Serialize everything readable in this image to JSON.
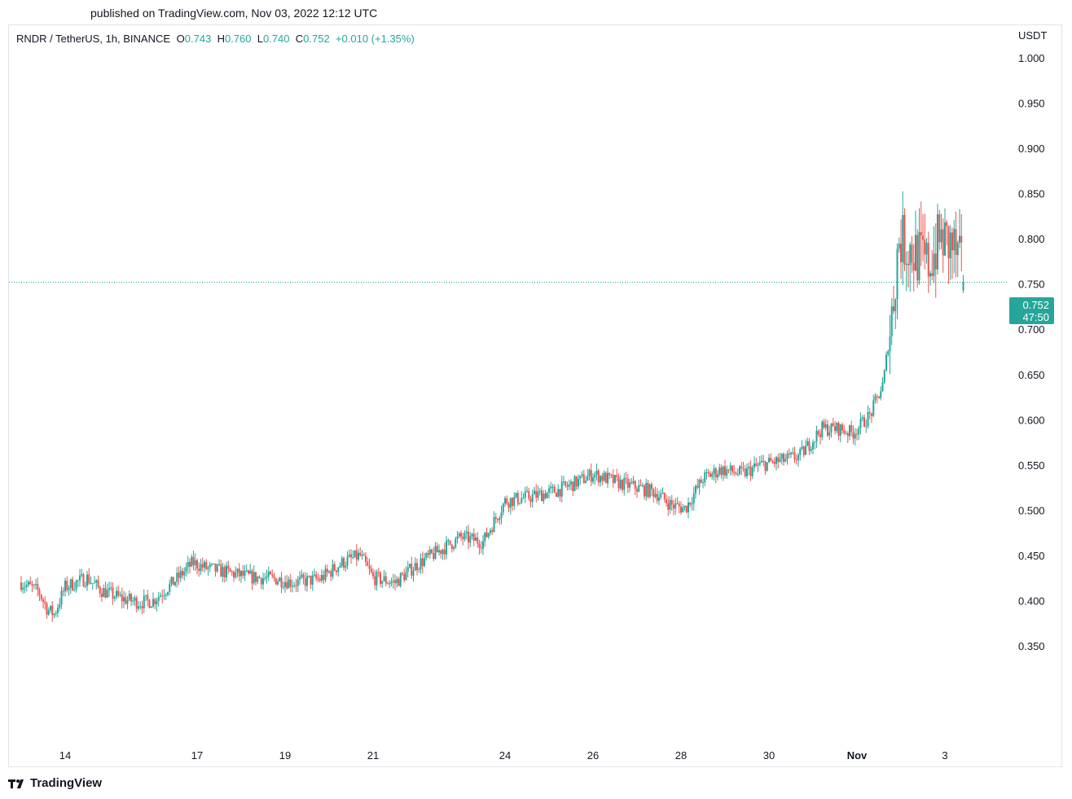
{
  "header": {
    "published": "published on TradingView.com, Nov 03, 2022 12:12 UTC"
  },
  "legend": {
    "symbol": "RNDR / TetherUS, 1h, BINANCE",
    "o_label": "O",
    "o_value": "0.743",
    "h_label": "H",
    "h_value": "0.760",
    "l_label": "L",
    "l_value": "0.740",
    "c_label": "C",
    "c_value": "0.752",
    "change": "+0.010 (+1.35%)"
  },
  "price_badge": {
    "price": "0.752",
    "countdown": "47:50"
  },
  "footer": {
    "brand": "TradingView"
  },
  "colors": {
    "up": "#26a69a",
    "down": "#ef5350",
    "text": "#131722",
    "border": "#e0e3eb"
  },
  "chart_data": {
    "type": "candlestick",
    "currency": "USDT",
    "ylim": [
      0.31,
      1.02
    ],
    "y_ticks": [
      "1.000",
      "0.950",
      "0.900",
      "0.850",
      "0.800",
      "0.750",
      "0.700",
      "0.650",
      "0.600",
      "0.550",
      "0.500",
      "0.450",
      "0.400",
      "0.350"
    ],
    "x_ticks": [
      {
        "label": "14",
        "day": 14
      },
      {
        "label": "17",
        "day": 17
      },
      {
        "label": "19",
        "day": 19
      },
      {
        "label": "21",
        "day": 21
      },
      {
        "label": "24",
        "day": 24
      },
      {
        "label": "26",
        "day": 26
      },
      {
        "label": "28",
        "day": 28
      },
      {
        "label": "30",
        "day": 30
      },
      {
        "label": "Nov",
        "day": 32
      },
      {
        "label": "3",
        "day": 34
      }
    ],
    "last_close": 0.752,
    "hours_per_candle": 1,
    "start_day": 13.0,
    "close_path": [
      [
        13.0,
        0.42
      ],
      [
        13.4,
        0.41
      ],
      [
        13.6,
        0.39
      ],
      [
        13.75,
        0.385
      ],
      [
        14.0,
        0.415
      ],
      [
        14.5,
        0.425
      ],
      [
        14.8,
        0.412
      ],
      [
        15.3,
        0.402
      ],
      [
        15.7,
        0.398
      ],
      [
        16.0,
        0.4
      ],
      [
        16.5,
        0.422
      ],
      [
        16.9,
        0.442
      ],
      [
        17.2,
        0.436
      ],
      [
        17.6,
        0.432
      ],
      [
        18.2,
        0.426
      ],
      [
        18.8,
        0.424
      ],
      [
        19.2,
        0.42
      ],
      [
        19.8,
        0.424
      ],
      [
        20.3,
        0.442
      ],
      [
        20.7,
        0.45
      ],
      [
        21.0,
        0.425
      ],
      [
        21.5,
        0.42
      ],
      [
        22.0,
        0.44
      ],
      [
        22.5,
        0.455
      ],
      [
        23.0,
        0.47
      ],
      [
        23.5,
        0.465
      ],
      [
        24.0,
        0.51
      ],
      [
        24.6,
        0.515
      ],
      [
        25.2,
        0.522
      ],
      [
        25.6,
        0.53
      ],
      [
        26.0,
        0.54
      ],
      [
        26.6,
        0.53
      ],
      [
        27.4,
        0.52
      ],
      [
        27.8,
        0.505
      ],
      [
        28.1,
        0.502
      ],
      [
        28.5,
        0.535
      ],
      [
        28.9,
        0.545
      ],
      [
        29.4,
        0.54
      ],
      [
        29.8,
        0.55
      ],
      [
        30.3,
        0.555
      ],
      [
        30.7,
        0.56
      ],
      [
        31.2,
        0.59
      ],
      [
        31.6,
        0.59
      ],
      [
        31.9,
        0.585
      ],
      [
        32.3,
        0.605
      ],
      [
        32.6,
        0.64
      ],
      [
        32.8,
        0.72
      ],
      [
        32.95,
        0.8
      ],
      [
        33.2,
        0.79
      ],
      [
        33.6,
        0.77
      ],
      [
        33.9,
        0.8
      ],
      [
        34.2,
        0.79
      ],
      [
        34.45,
        0.752
      ]
    ]
  }
}
